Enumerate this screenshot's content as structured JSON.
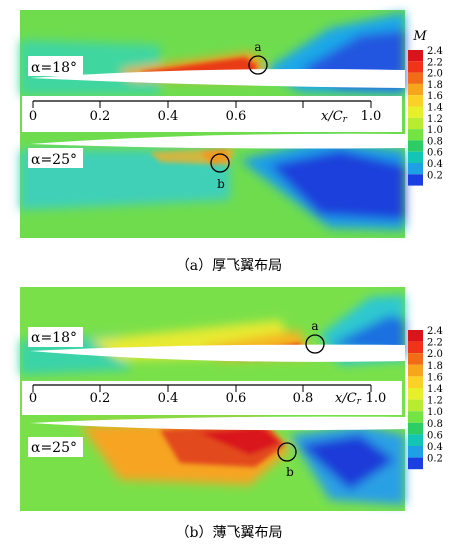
{
  "panels": [
    {
      "id": "a",
      "caption": "（a）厚飞翼布局",
      "upper_alpha": "α=18°",
      "lower_alpha": "α=25°",
      "marker_upper": "a",
      "marker_lower": "b"
    },
    {
      "id": "b",
      "caption": "（b）薄飞翼布局",
      "upper_alpha": "α=18°",
      "lower_alpha": "α=25°",
      "marker_upper": "a",
      "marker_lower": "b"
    }
  ],
  "axis": {
    "ticks": [
      "0",
      "0.2",
      "0.4",
      "0.6",
      "0.8",
      "1.0"
    ],
    "label": "x/Cr"
  },
  "colorbar": {
    "title": "M",
    "ticks": [
      "2.4",
      "2.2",
      "2.0",
      "1.8",
      "1.6",
      "1.4",
      "1.2",
      "1.0",
      "0.8",
      "0.6",
      "0.4",
      "0.2"
    ],
    "colors": [
      "#d9141a",
      "#f0341a",
      "#f36b18",
      "#f7a51d",
      "#fbd128",
      "#e6ef2a",
      "#b8ec32",
      "#74e444",
      "#2ccd64",
      "#12c5b4",
      "#1da0e6",
      "#1a3fe0"
    ]
  }
}
